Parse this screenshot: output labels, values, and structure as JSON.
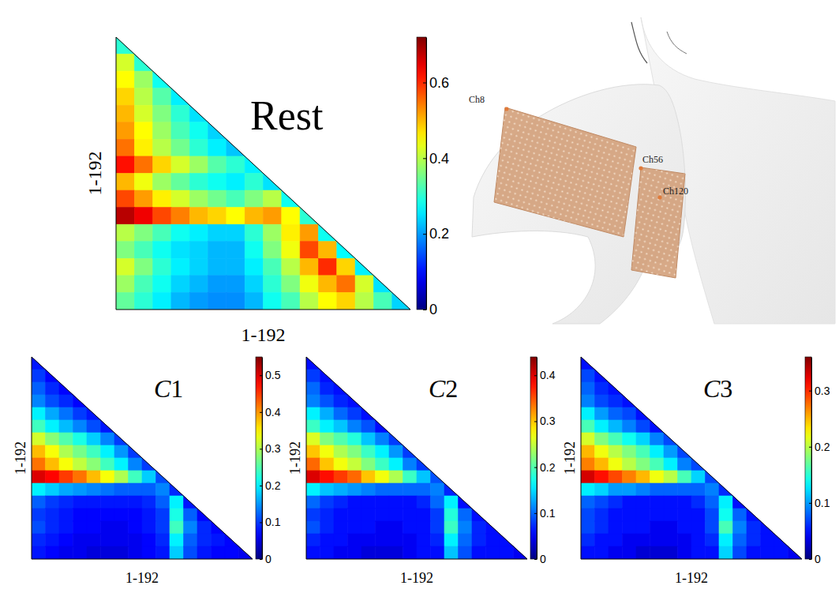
{
  "chart_data": [
    {
      "type": "heatmap",
      "title": "Rest",
      "x_label": "1-192",
      "y_label": "1-192",
      "tick_labels": false,
      "colorbar": {
        "range": [
          0,
          0.72
        ],
        "ticks": [
          0,
          0.2,
          0.4,
          0.6
        ]
      },
      "cells": [
        [
          0.3
        ],
        [
          0.42,
          0.3
        ],
        [
          0.45,
          0.38,
          0.28
        ],
        [
          0.48,
          0.4,
          0.33,
          0.26
        ],
        [
          0.5,
          0.42,
          0.36,
          0.3,
          0.25
        ],
        [
          0.52,
          0.45,
          0.38,
          0.32,
          0.28,
          0.24
        ],
        [
          0.55,
          0.46,
          0.4,
          0.35,
          0.3,
          0.26,
          0.23
        ],
        [
          0.62,
          0.55,
          0.48,
          0.42,
          0.38,
          0.33,
          0.3,
          0.26
        ],
        [
          0.5,
          0.44,
          0.38,
          0.34,
          0.3,
          0.28,
          0.26,
          0.3,
          0.25
        ],
        [
          0.58,
          0.52,
          0.46,
          0.42,
          0.38,
          0.35,
          0.32,
          0.36,
          0.4,
          0.28
        ],
        [
          0.68,
          0.64,
          0.58,
          0.54,
          0.5,
          0.48,
          0.45,
          0.5,
          0.52,
          0.45,
          0.3
        ],
        [
          0.4,
          0.36,
          0.32,
          0.28,
          0.26,
          0.24,
          0.24,
          0.3,
          0.38,
          0.46,
          0.52,
          0.28
        ],
        [
          0.36,
          0.32,
          0.28,
          0.25,
          0.24,
          0.22,
          0.22,
          0.28,
          0.36,
          0.44,
          0.58,
          0.5,
          0.27
        ],
        [
          0.42,
          0.36,
          0.3,
          0.26,
          0.24,
          0.22,
          0.22,
          0.26,
          0.32,
          0.4,
          0.5,
          0.6,
          0.48,
          0.26
        ],
        [
          0.38,
          0.32,
          0.28,
          0.24,
          0.22,
          0.2,
          0.2,
          0.24,
          0.3,
          0.36,
          0.44,
          0.5,
          0.55,
          0.42,
          0.25
        ],
        [
          0.34,
          0.3,
          0.26,
          0.22,
          0.2,
          0.19,
          0.19,
          0.22,
          0.28,
          0.32,
          0.4,
          0.45,
          0.48,
          0.4,
          0.32,
          0.24
        ]
      ]
    },
    {
      "type": "heatmap",
      "title": "C1",
      "x_label": "1-192",
      "y_label": "1-192",
      "tick_labels": false,
      "colorbar": {
        "range": [
          0,
          0.55
        ],
        "ticks": [
          0,
          0.1,
          0.2,
          0.3,
          0.4,
          0.5
        ]
      },
      "cells": [
        [
          0.08
        ],
        [
          0.1,
          0.07
        ],
        [
          0.12,
          0.09,
          0.07
        ],
        [
          0.14,
          0.11,
          0.09,
          0.07
        ],
        [
          0.2,
          0.16,
          0.13,
          0.1,
          0.08
        ],
        [
          0.24,
          0.2,
          0.17,
          0.14,
          0.11,
          0.08
        ],
        [
          0.32,
          0.28,
          0.25,
          0.22,
          0.18,
          0.14,
          0.1
        ],
        [
          0.38,
          0.34,
          0.3,
          0.27,
          0.24,
          0.2,
          0.15,
          0.1
        ],
        [
          0.42,
          0.38,
          0.34,
          0.31,
          0.28,
          0.24,
          0.2,
          0.14,
          0.1
        ],
        [
          0.5,
          0.48,
          0.45,
          0.42,
          0.38,
          0.34,
          0.3,
          0.24,
          0.18,
          0.11
        ],
        [
          0.2,
          0.18,
          0.16,
          0.15,
          0.14,
          0.13,
          0.12,
          0.12,
          0.12,
          0.14,
          0.09
        ],
        [
          0.12,
          0.1,
          0.09,
          0.08,
          0.08,
          0.08,
          0.08,
          0.08,
          0.09,
          0.12,
          0.2,
          0.08
        ],
        [
          0.1,
          0.09,
          0.08,
          0.07,
          0.07,
          0.07,
          0.07,
          0.07,
          0.08,
          0.1,
          0.22,
          0.12,
          0.07
        ],
        [
          0.11,
          0.09,
          0.08,
          0.07,
          0.07,
          0.06,
          0.06,
          0.07,
          0.08,
          0.1,
          0.24,
          0.14,
          0.09,
          0.07
        ],
        [
          0.09,
          0.08,
          0.07,
          0.06,
          0.06,
          0.06,
          0.06,
          0.06,
          0.07,
          0.09,
          0.2,
          0.12,
          0.09,
          0.08,
          0.07
        ],
        [
          0.08,
          0.07,
          0.06,
          0.06,
          0.05,
          0.05,
          0.05,
          0.06,
          0.07,
          0.08,
          0.18,
          0.11,
          0.08,
          0.07,
          0.07,
          0.06
        ]
      ]
    },
    {
      "type": "heatmap",
      "title": "C2",
      "x_label": "1-192",
      "y_label": "1-192",
      "tick_labels": false,
      "colorbar": {
        "range": [
          0,
          0.44
        ],
        "ticks": [
          0,
          0.1,
          0.2,
          0.3,
          0.4
        ]
      },
      "cells": [
        [
          0.06
        ],
        [
          0.08,
          0.06
        ],
        [
          0.1,
          0.07,
          0.06
        ],
        [
          0.11,
          0.09,
          0.07,
          0.06
        ],
        [
          0.16,
          0.13,
          0.1,
          0.08,
          0.06
        ],
        [
          0.19,
          0.16,
          0.14,
          0.11,
          0.09,
          0.06
        ],
        [
          0.26,
          0.22,
          0.2,
          0.18,
          0.14,
          0.11,
          0.08
        ],
        [
          0.3,
          0.27,
          0.24,
          0.22,
          0.19,
          0.16,
          0.12,
          0.08
        ],
        [
          0.34,
          0.3,
          0.27,
          0.25,
          0.22,
          0.19,
          0.16,
          0.11,
          0.08
        ],
        [
          0.4,
          0.38,
          0.36,
          0.34,
          0.3,
          0.27,
          0.24,
          0.19,
          0.14,
          0.09
        ],
        [
          0.16,
          0.14,
          0.13,
          0.12,
          0.11,
          0.1,
          0.1,
          0.1,
          0.1,
          0.11,
          0.07
        ],
        [
          0.1,
          0.08,
          0.07,
          0.06,
          0.06,
          0.06,
          0.06,
          0.06,
          0.07,
          0.1,
          0.16,
          0.06
        ],
        [
          0.08,
          0.07,
          0.06,
          0.06,
          0.06,
          0.06,
          0.06,
          0.06,
          0.06,
          0.08,
          0.18,
          0.1,
          0.06
        ],
        [
          0.09,
          0.07,
          0.06,
          0.06,
          0.06,
          0.05,
          0.05,
          0.06,
          0.06,
          0.08,
          0.19,
          0.11,
          0.07,
          0.06
        ],
        [
          0.07,
          0.06,
          0.06,
          0.05,
          0.05,
          0.05,
          0.05,
          0.05,
          0.06,
          0.07,
          0.16,
          0.1,
          0.07,
          0.06,
          0.06
        ],
        [
          0.06,
          0.06,
          0.05,
          0.05,
          0.04,
          0.04,
          0.04,
          0.05,
          0.06,
          0.06,
          0.14,
          0.09,
          0.06,
          0.06,
          0.06,
          0.05
        ]
      ]
    },
    {
      "type": "heatmap",
      "title": "C3",
      "x_label": "1-192",
      "y_label": "1-192",
      "tick_labels": false,
      "colorbar": {
        "range": [
          0,
          0.36
        ],
        "ticks": [
          0,
          0.1,
          0.2,
          0.3
        ]
      },
      "cells": [
        [
          0.05
        ],
        [
          0.07,
          0.05
        ],
        [
          0.08,
          0.06,
          0.05
        ],
        [
          0.09,
          0.07,
          0.06,
          0.05
        ],
        [
          0.13,
          0.1,
          0.08,
          0.07,
          0.05
        ],
        [
          0.16,
          0.13,
          0.11,
          0.09,
          0.07,
          0.05
        ],
        [
          0.21,
          0.18,
          0.16,
          0.14,
          0.12,
          0.09,
          0.07
        ],
        [
          0.25,
          0.22,
          0.2,
          0.18,
          0.16,
          0.13,
          0.1,
          0.07
        ],
        [
          0.27,
          0.25,
          0.22,
          0.2,
          0.18,
          0.16,
          0.13,
          0.09,
          0.07
        ],
        [
          0.33,
          0.31,
          0.29,
          0.27,
          0.25,
          0.22,
          0.2,
          0.16,
          0.12,
          0.07
        ],
        [
          0.13,
          0.12,
          0.1,
          0.1,
          0.09,
          0.08,
          0.08,
          0.08,
          0.08,
          0.09,
          0.06
        ],
        [
          0.08,
          0.07,
          0.06,
          0.05,
          0.05,
          0.05,
          0.05,
          0.05,
          0.06,
          0.08,
          0.13,
          0.05
        ],
        [
          0.07,
          0.06,
          0.05,
          0.05,
          0.05,
          0.05,
          0.05,
          0.05,
          0.05,
          0.07,
          0.14,
          0.08,
          0.05
        ],
        [
          0.07,
          0.06,
          0.05,
          0.05,
          0.05,
          0.04,
          0.04,
          0.05,
          0.05,
          0.07,
          0.16,
          0.09,
          0.06,
          0.05
        ],
        [
          0.06,
          0.05,
          0.05,
          0.04,
          0.04,
          0.04,
          0.04,
          0.04,
          0.05,
          0.06,
          0.13,
          0.08,
          0.06,
          0.05,
          0.05
        ],
        [
          0.05,
          0.05,
          0.04,
          0.04,
          0.03,
          0.03,
          0.03,
          0.04,
          0.05,
          0.05,
          0.12,
          0.07,
          0.05,
          0.05,
          0.05,
          0.04
        ]
      ]
    }
  ],
  "illustration": {
    "labels": [
      "Ch8",
      "Ch56",
      "Ch120"
    ]
  }
}
